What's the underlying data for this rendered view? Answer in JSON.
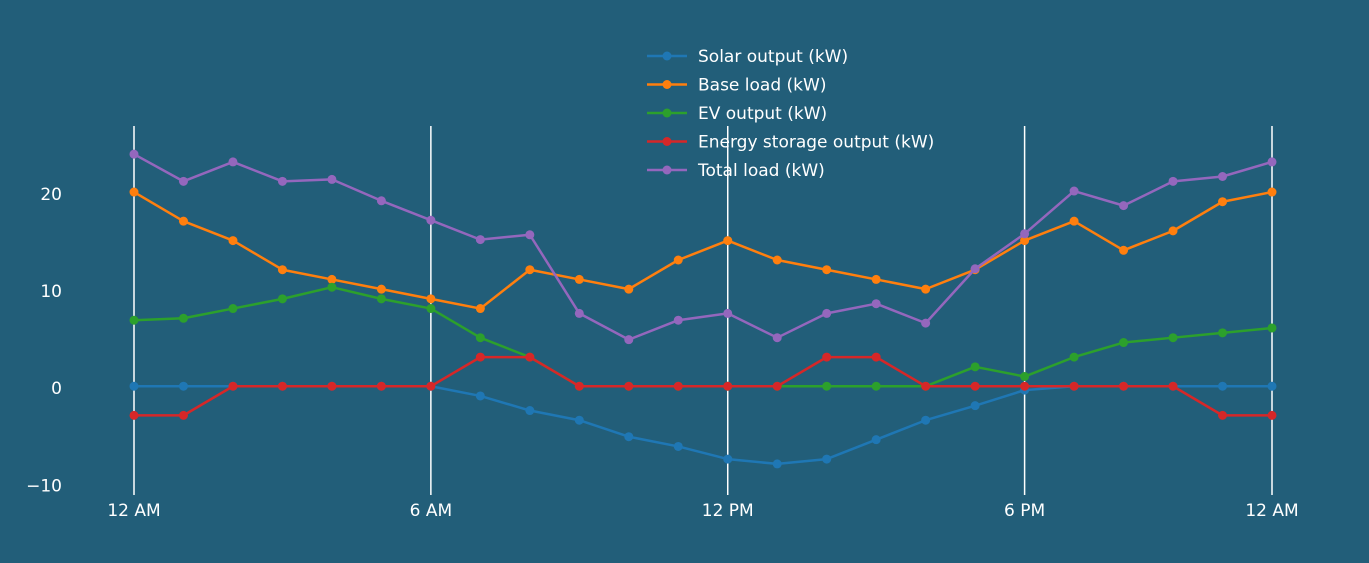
{
  "colors": {
    "background": "#225e79",
    "gridline": "#ffffff",
    "text": "#ffffff"
  },
  "chart_data": {
    "type": "line",
    "x": [
      0,
      1,
      2,
      3,
      4,
      5,
      6,
      7,
      8,
      9,
      10,
      11,
      12,
      13,
      14,
      15,
      16,
      17,
      18,
      19,
      20,
      21,
      22,
      23
    ],
    "x_tick_values": [
      0,
      6,
      12,
      18,
      23
    ],
    "x_tick_labels": [
      "12 AM",
      "6 AM",
      "12 PM",
      "6 PM",
      "12 AM"
    ],
    "y_tick_values": [
      -10,
      0,
      10,
      20
    ],
    "y_tick_labels": [
      "−10",
      "0",
      "10",
      "20"
    ],
    "ylim": [
      -11,
      27
    ],
    "grid": {
      "vertical": true,
      "horizontal": false
    },
    "legend_position": "top-center",
    "series": [
      {
        "name": "Solar output (kW)",
        "color": "#1f77b4",
        "values": [
          0.2,
          0.2,
          0.2,
          0.2,
          0.2,
          0.2,
          0.2,
          -0.8,
          -2.3,
          -3.3,
          -5,
          -6,
          -7.3,
          -7.8,
          -7.3,
          -5.3,
          -3.3,
          -1.8,
          -0.2,
          0.2,
          0.2,
          0.2,
          0.2,
          0.2
        ]
      },
      {
        "name": "Base load (kW)",
        "color": "#ff7f0e",
        "values": [
          20.2,
          17.2,
          15.2,
          12.2,
          11.2,
          10.2,
          9.2,
          8.2,
          12.2,
          11.2,
          10.2,
          13.2,
          15.2,
          13.2,
          12.2,
          11.2,
          10.2,
          12.2,
          15.2,
          17.2,
          14.2,
          16.2,
          19.2,
          20.2
        ]
      },
      {
        "name": "EV output (kW)",
        "color": "#2ca02c",
        "values": [
          7,
          7.2,
          8.2,
          9.2,
          10.4,
          9.2,
          8.2,
          5.2,
          3.2,
          0.2,
          0.2,
          0.2,
          0.2,
          0.2,
          0.2,
          0.2,
          0.2,
          2.2,
          1.2,
          3.2,
          4.7,
          5.2,
          5.7,
          6.2
        ]
      },
      {
        "name": "Energy storage output (kW)",
        "color": "#d62728",
        "values": [
          -2.8,
          -2.8,
          0.2,
          0.2,
          0.2,
          0.2,
          0.2,
          3.2,
          3.2,
          0.2,
          0.2,
          0.2,
          0.2,
          0.2,
          3.2,
          3.2,
          0.2,
          0.2,
          0.2,
          0.2,
          0.2,
          0.2,
          -2.8,
          -2.8
        ]
      },
      {
        "name": "Total load (kW)",
        "color": "#9467bd",
        "values": [
          24.1,
          21.3,
          23.3,
          21.3,
          21.5,
          19.3,
          17.3,
          15.3,
          15.8,
          7.7,
          5,
          7,
          7.7,
          5.2,
          7.7,
          8.7,
          6.7,
          12.3,
          15.9,
          20.3,
          18.8,
          21.3,
          21.8,
          23.3
        ]
      }
    ]
  }
}
